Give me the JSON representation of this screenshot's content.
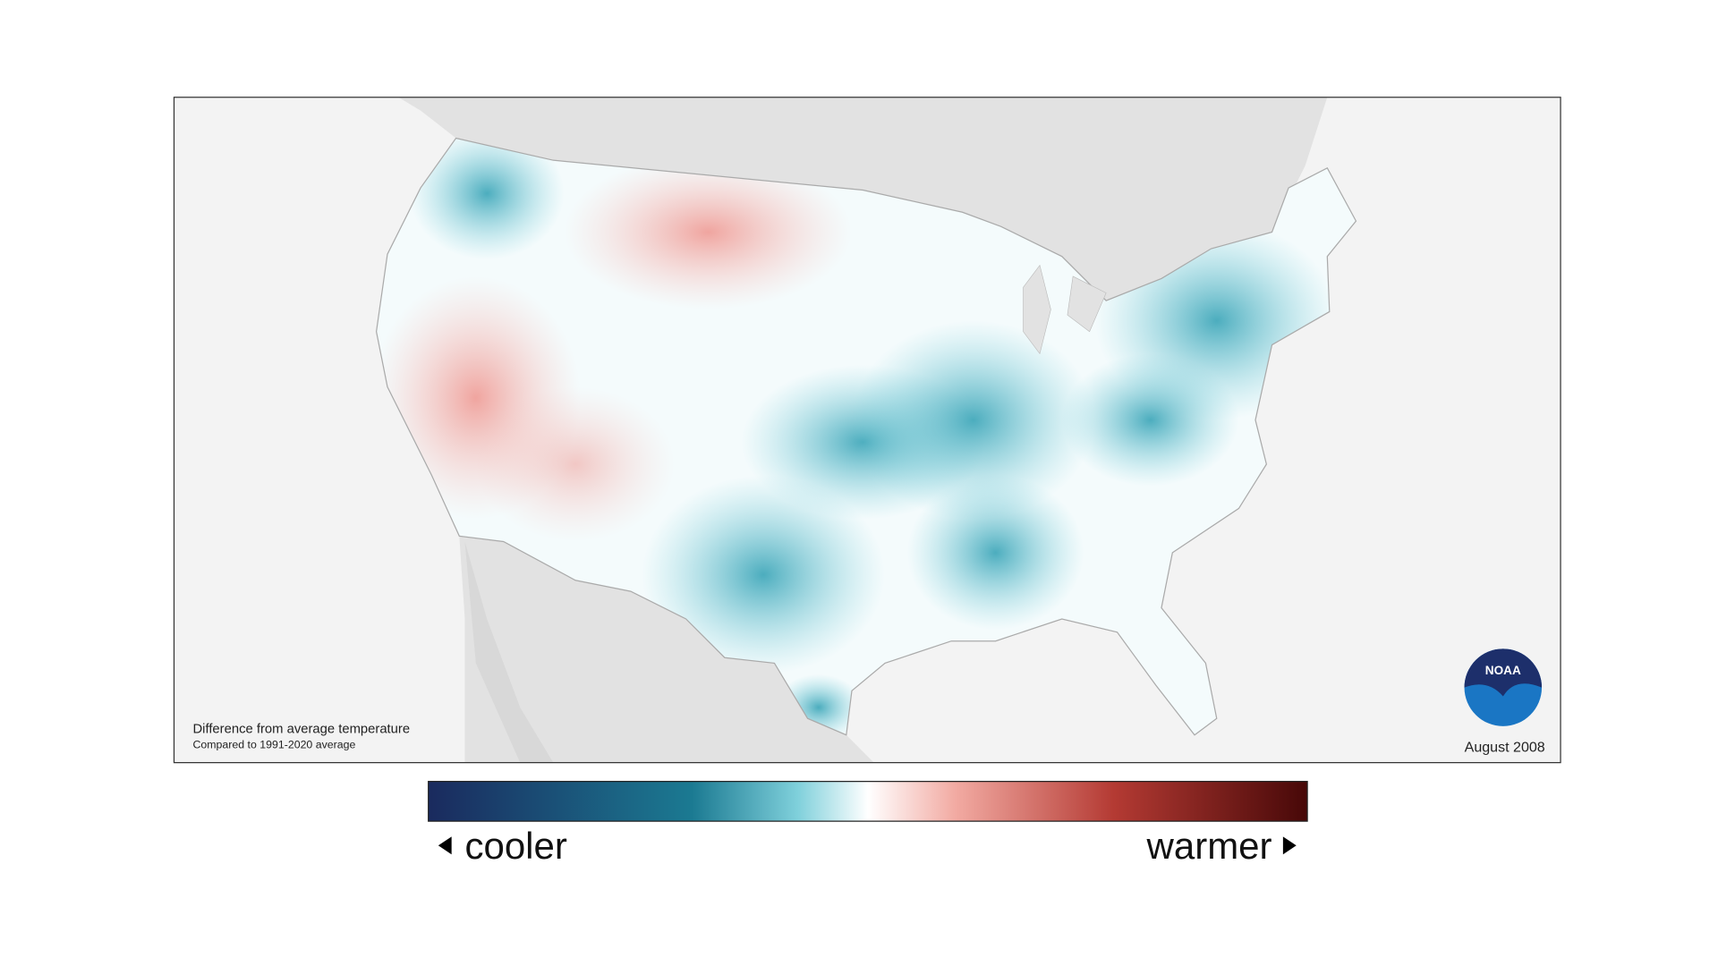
{
  "map": {
    "caption": "Difference from average temperature",
    "subcaption": "Compared to 1991-2020 average",
    "date": "August 2008",
    "logo": "NOAA"
  },
  "legend": {
    "low_label": "cooler",
    "high_label": "warmer"
  }
}
